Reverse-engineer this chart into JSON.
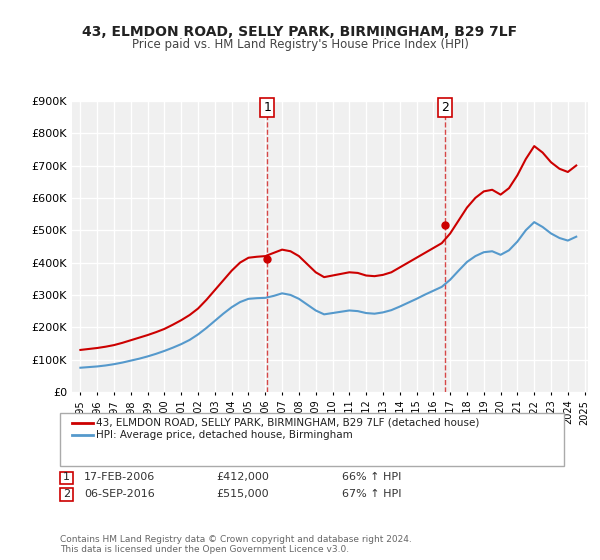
{
  "title": "43, ELMDON ROAD, SELLY PARK, BIRMINGHAM, B29 7LF",
  "subtitle": "Price paid vs. HM Land Registry's House Price Index (HPI)",
  "ylabel": "",
  "ylim": [
    0,
    900000
  ],
  "yticks": [
    0,
    100000,
    200000,
    300000,
    400000,
    500000,
    600000,
    700000,
    800000,
    900000
  ],
  "ytick_labels": [
    "£0",
    "£100K",
    "£200K",
    "£300K",
    "£400K",
    "£500K",
    "£600K",
    "£700K",
    "£800K",
    "£900K"
  ],
  "background_color": "#ffffff",
  "plot_bg_color": "#f0f0f0",
  "grid_color": "#ffffff",
  "red_line_color": "#cc0000",
  "blue_line_color": "#5599cc",
  "transaction1": {
    "date": "17-FEB-2006",
    "price": 412000,
    "hpi_pct": "66% ↑ HPI",
    "label": "1",
    "year": 2006.12
  },
  "transaction2": {
    "date": "06-SEP-2016",
    "price": 515000,
    "hpi_pct": "67% ↑ HPI",
    "label": "2",
    "year": 2016.68
  },
  "legend_label1": "43, ELMDON ROAD, SELLY PARK, BIRMINGHAM, B29 7LF (detached house)",
  "legend_label2": "HPI: Average price, detached house, Birmingham",
  "footer": "Contains HM Land Registry data © Crown copyright and database right 2024.\nThis data is licensed under the Open Government Licence v3.0.",
  "hpi_red_years": [
    1995.0,
    1995.5,
    1996.0,
    1996.5,
    1997.0,
    1997.5,
    1998.0,
    1998.5,
    1999.0,
    1999.5,
    2000.0,
    2000.5,
    2001.0,
    2001.5,
    2002.0,
    2002.5,
    2003.0,
    2003.5,
    2004.0,
    2004.5,
    2005.0,
    2005.5,
    2006.0,
    2006.5,
    2007.0,
    2007.5,
    2008.0,
    2008.5,
    2009.0,
    2009.5,
    2010.0,
    2010.5,
    2011.0,
    2011.5,
    2012.0,
    2012.5,
    2013.0,
    2013.5,
    2014.0,
    2014.5,
    2015.0,
    2015.5,
    2016.0,
    2016.5,
    2017.0,
    2017.5,
    2018.0,
    2018.5,
    2019.0,
    2019.5,
    2020.0,
    2020.5,
    2021.0,
    2021.5,
    2022.0,
    2022.5,
    2023.0,
    2023.5,
    2024.0,
    2024.5
  ],
  "hpi_red_values": [
    130000,
    133000,
    136000,
    140000,
    145000,
    152000,
    160000,
    168000,
    176000,
    185000,
    195000,
    208000,
    222000,
    238000,
    258000,
    285000,
    315000,
    345000,
    375000,
    400000,
    415000,
    418000,
    420000,
    430000,
    440000,
    435000,
    420000,
    395000,
    370000,
    355000,
    360000,
    365000,
    370000,
    368000,
    360000,
    358000,
    362000,
    370000,
    385000,
    400000,
    415000,
    430000,
    445000,
    460000,
    490000,
    530000,
    570000,
    600000,
    620000,
    625000,
    610000,
    630000,
    670000,
    720000,
    760000,
    740000,
    710000,
    690000,
    680000,
    700000
  ],
  "hpi_blue_years": [
    1995.0,
    1995.5,
    1996.0,
    1996.5,
    1997.0,
    1997.5,
    1998.0,
    1998.5,
    1999.0,
    1999.5,
    2000.0,
    2000.5,
    2001.0,
    2001.5,
    2002.0,
    2002.5,
    2003.0,
    2003.5,
    2004.0,
    2004.5,
    2005.0,
    2005.5,
    2006.0,
    2006.5,
    2007.0,
    2007.5,
    2008.0,
    2008.5,
    2009.0,
    2009.5,
    2010.0,
    2010.5,
    2011.0,
    2011.5,
    2012.0,
    2012.5,
    2013.0,
    2013.5,
    2014.0,
    2014.5,
    2015.0,
    2015.5,
    2016.0,
    2016.5,
    2017.0,
    2017.5,
    2018.0,
    2018.5,
    2019.0,
    2019.5,
    2020.0,
    2020.5,
    2021.0,
    2021.5,
    2022.0,
    2022.5,
    2023.0,
    2023.5,
    2024.0,
    2024.5
  ],
  "hpi_blue_values": [
    75000,
    77000,
    79000,
    82000,
    86000,
    91000,
    97000,
    103000,
    110000,
    118000,
    127000,
    137000,
    148000,
    161000,
    178000,
    198000,
    220000,
    242000,
    262000,
    278000,
    288000,
    290000,
    291000,
    297000,
    305000,
    300000,
    288000,
    270000,
    252000,
    240000,
    244000,
    248000,
    252000,
    250000,
    244000,
    242000,
    246000,
    253000,
    264000,
    276000,
    288000,
    301000,
    313000,
    325000,
    347000,
    375000,
    402000,
    420000,
    432000,
    435000,
    424000,
    438000,
    465000,
    500000,
    525000,
    510000,
    490000,
    476000,
    468000,
    480000
  ]
}
